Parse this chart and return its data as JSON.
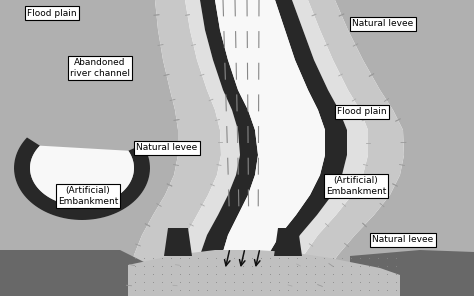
{
  "labels": {
    "flood_plain_top": "Flood plain",
    "flood_plain_right": "Flood plain",
    "natural_levee_top": "Natural levee",
    "natural_levee_left": "Natural levee",
    "natural_levee_bottom": "Natural levee",
    "abandoned_channel": "Abandoned\nriver channel",
    "artificial_left": "(Artificial)\nEmbankment",
    "artificial_right": "(Artificial)\nEmbankment"
  },
  "colors": {
    "white": "#ffffff",
    "flood_plain_dark": "#b0b0b0",
    "flood_plain_light": "#d0d0d0",
    "nat_levee_light": "#e0e0e0",
    "nat_levee_mid": "#c8c8c8",
    "embankment_dark": "#282828",
    "ground_dark": "#686868",
    "ground_bottom": "#505050",
    "dotted_bg": "#c0c0c0",
    "channel_white": "#f8f8f8",
    "abandoned_dark": "#1a1a1a",
    "abandoned_light": "#e8e8e8",
    "tick_color": "#555555"
  }
}
